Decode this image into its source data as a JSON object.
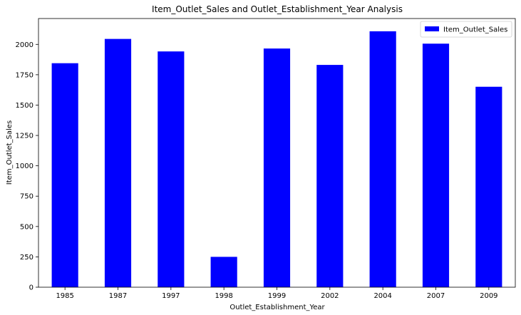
{
  "chart_data": {
    "type": "bar",
    "title": "Item_Outlet_Sales and Outlet_Establishment_Year Analysis",
    "xlabel": "Outlet_Establishment_Year",
    "ylabel": "Item_Outlet_Sales",
    "categories": [
      "1985",
      "1987",
      "1997",
      "1998",
      "1999",
      "2002",
      "2004",
      "2007",
      "2009"
    ],
    "series": [
      {
        "name": "Item_Outlet_Sales",
        "color": "#0000ff",
        "values": [
          1845,
          2045,
          1942,
          250,
          1966,
          1831,
          2108,
          2006,
          1651
        ]
      }
    ],
    "yticks": [
      0,
      250,
      500,
      750,
      1000,
      1250,
      1500,
      1750,
      2000
    ],
    "ylim": [
      0,
      2213
    ],
    "grid": false,
    "legend_position": "top-right"
  }
}
